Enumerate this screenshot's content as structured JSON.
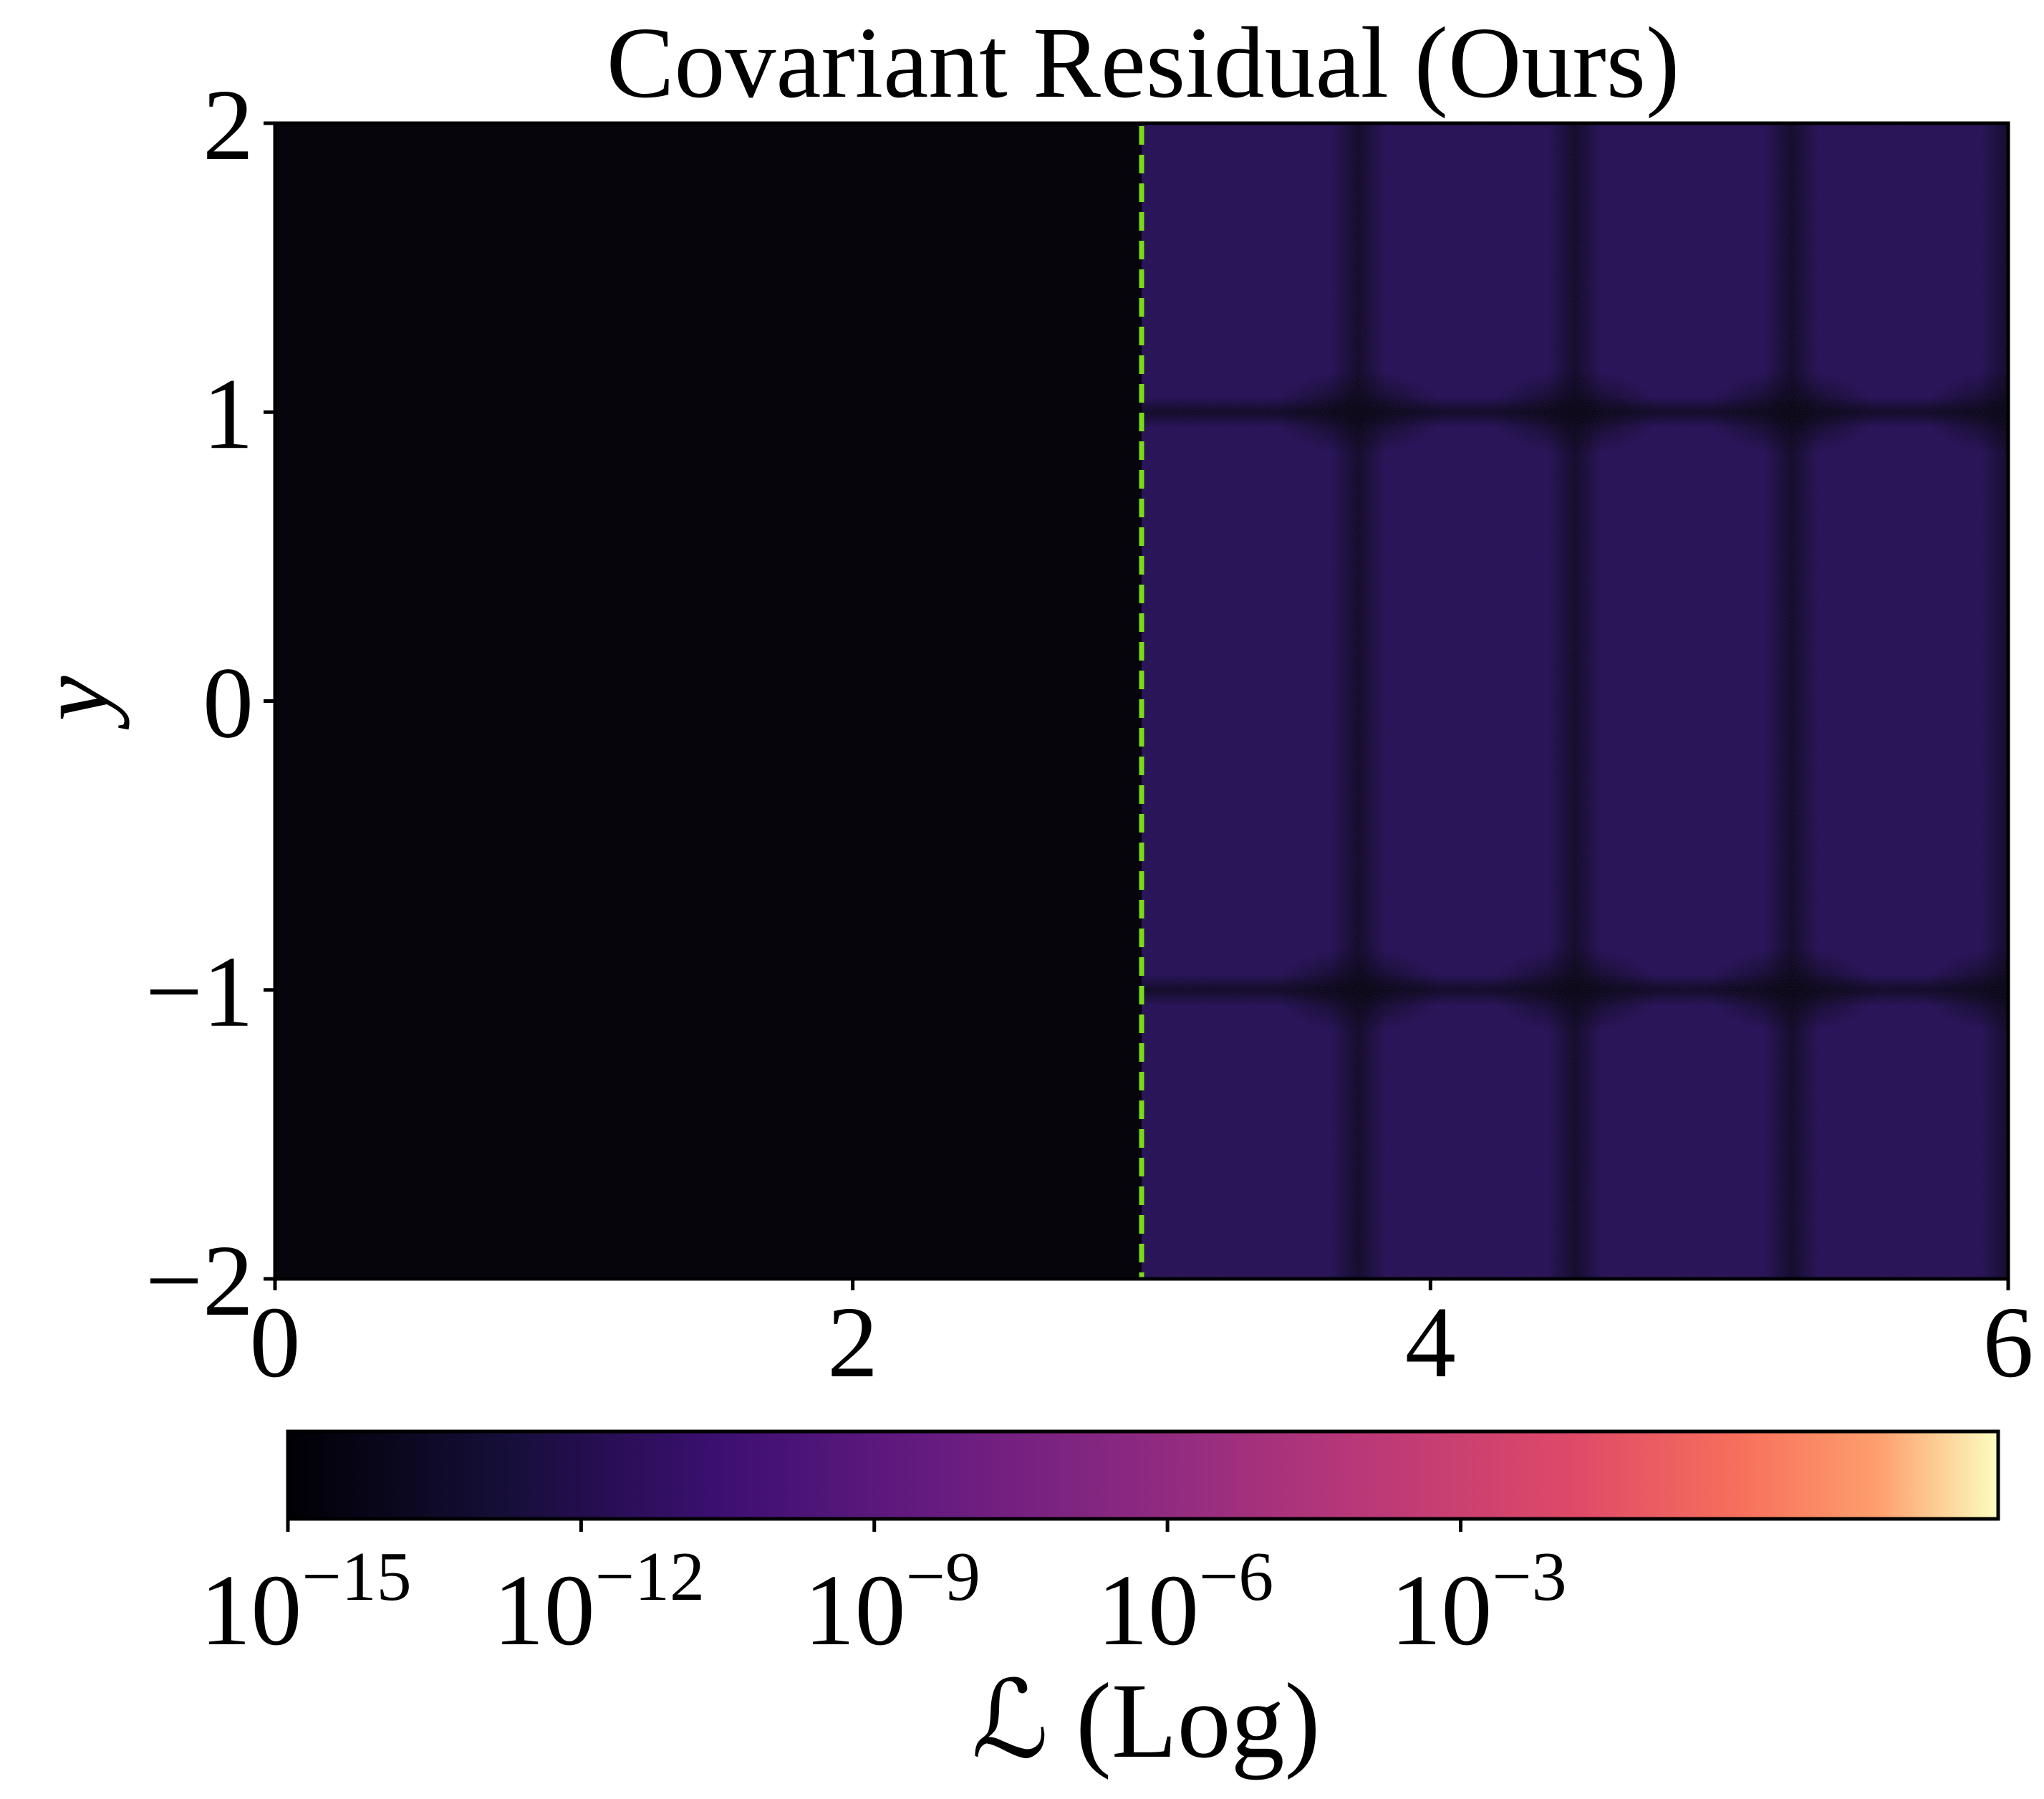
{
  "chart_data": {
    "type": "heatmap",
    "title": "Covariant Residual (Ours)",
    "xlabel": "",
    "ylabel": "y",
    "xlim": [
      0,
      6
    ],
    "ylim": [
      -2,
      2
    ],
    "x_ticks": [
      {
        "value": 0,
        "label": "0"
      },
      {
        "value": 2,
        "label": "2"
      },
      {
        "value": 4,
        "label": "4"
      },
      {
        "value": 6,
        "label": "6"
      }
    ],
    "y_ticks": [
      {
        "value": 2,
        "label": "2"
      },
      {
        "value": 1,
        "label": "1"
      },
      {
        "value": 0,
        "label": "0"
      },
      {
        "value": -1,
        "label": "−1"
      },
      {
        "value": -2,
        "label": "−2"
      }
    ],
    "colormap": "magma",
    "colorbar": {
      "scale": "log",
      "label": "ℒ (Log)",
      "range_exponent": [
        -15,
        2.5
      ],
      "ticks": [
        {
          "exponent": -15,
          "base": "10",
          "sup": "−15"
        },
        {
          "exponent": -12,
          "base": "10",
          "sup": "−12"
        },
        {
          "exponent": -9,
          "base": "10",
          "sup": "−9"
        },
        {
          "exponent": -6,
          "base": "10",
          "sup": "−6"
        },
        {
          "exponent": -3,
          "base": "10",
          "sup": "−3"
        }
      ]
    },
    "regions": [
      {
        "name": "left",
        "x_range": [
          0,
          3
        ],
        "approx_log10_value": -15
      },
      {
        "name": "right",
        "x_range": [
          3,
          6
        ],
        "approx_log10_value": -13.3
      }
    ],
    "dashed_line": {
      "x": 3,
      "color": "#7cdc14"
    }
  },
  "colors": {
    "left_region": "#06050c",
    "right_region": "#2b1460",
    "divider": "#7cdc14"
  }
}
